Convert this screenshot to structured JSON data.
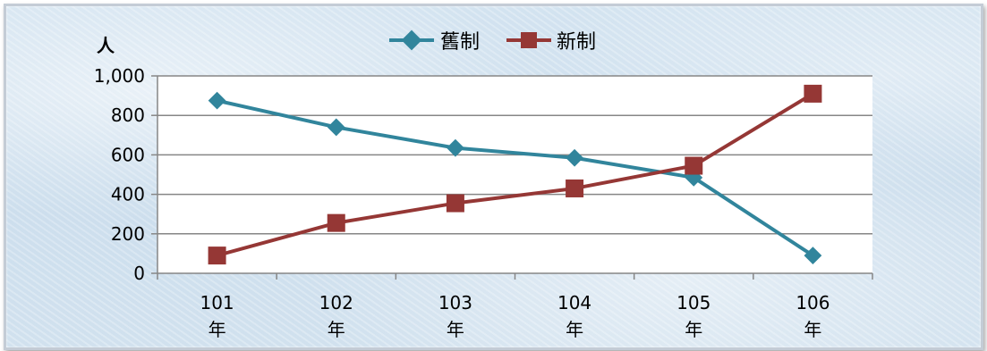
{
  "chart_data": {
    "type": "line",
    "ylabel": "人",
    "categories": [
      "101\n年",
      "102\n年",
      "103\n年",
      "104\n年",
      "105\n年",
      "106\n年"
    ],
    "ylim": [
      0,
      1000
    ],
    "yticks": [
      "0",
      "200",
      "400",
      "600",
      "800",
      "1,000"
    ],
    "grid": true,
    "legend_position": "top-center",
    "series": [
      {
        "name": "舊制",
        "color": "#31859c",
        "marker": "diamond",
        "values": [
          875,
          740,
          635,
          585,
          485,
          90
        ]
      },
      {
        "name": "新制",
        "color": "#953735",
        "marker": "square",
        "values": [
          90,
          255,
          355,
          430,
          545,
          910
        ]
      }
    ]
  }
}
